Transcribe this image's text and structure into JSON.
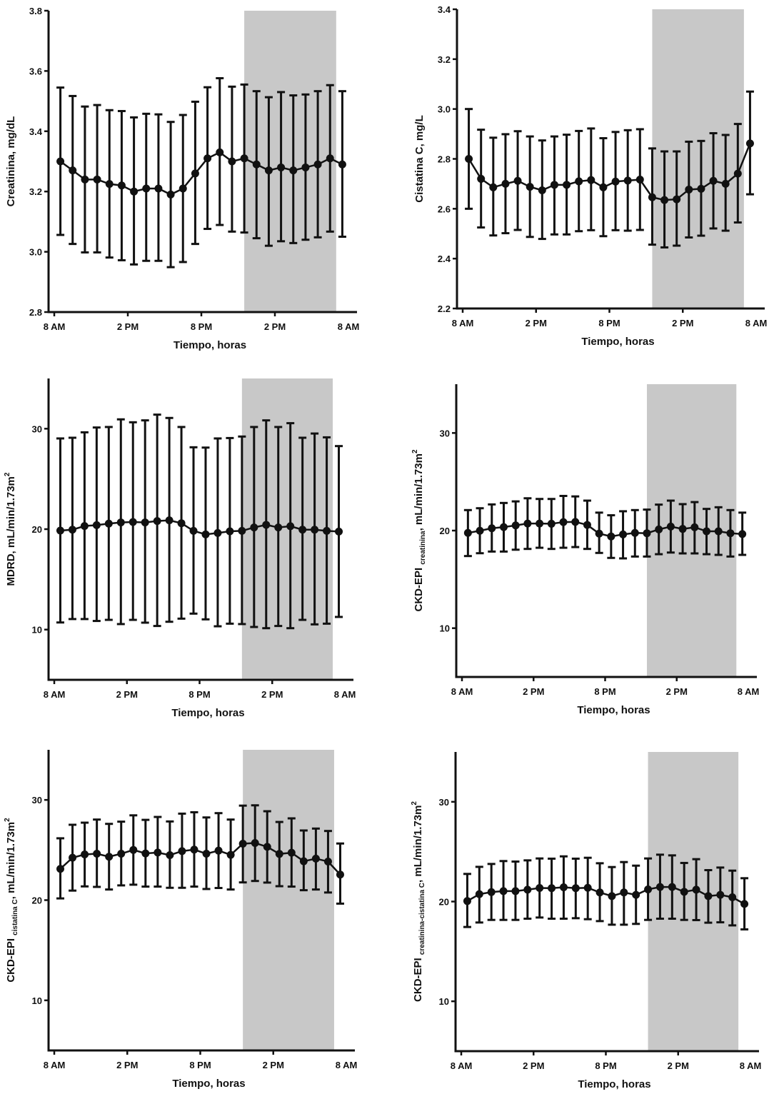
{
  "colors": {
    "line": "#111111",
    "shade": "#c8c8c8",
    "background": "#ffffff"
  },
  "x_axis": {
    "label": "Tiempo, horas",
    "tick_labels": [
      "8 AM",
      "2 PM",
      "8 PM",
      "2 PM",
      "8 AM"
    ],
    "tick_hours_from_start": [
      0,
      6,
      12,
      18,
      24
    ],
    "point_hours_from_start": [
      0.5,
      1.5,
      2.5,
      3.5,
      4.5,
      5.5,
      6.5,
      7.5,
      8.5,
      9.5,
      10.5,
      11.5,
      12.5,
      13.5,
      14.5,
      15.5,
      16.5,
      17.5,
      18.5,
      19.5,
      20.5,
      21.5,
      22.5,
      23.5
    ],
    "shaded_period_hours_from_start": [
      15.5,
      23.0
    ]
  },
  "chart_data": [
    {
      "id": "creatinina",
      "type": "line",
      "title": "",
      "ylabel": "Creatinina, mg/dL",
      "ylabel_main": "Creatinina, mg/dL",
      "ylabel_sub": "",
      "ylabel_tail": "",
      "xlabel": "Tiempo, horas",
      "ylim": [
        2.8,
        3.8
      ],
      "yticks": [
        2.8,
        3.0,
        3.2,
        3.4,
        3.6,
        3.8
      ],
      "ytick_labels": [
        "2.8",
        "3.0",
        "3.2",
        "3.4",
        "3.6",
        "3.8"
      ],
      "grid": false,
      "error_bars": true,
      "series": [
        {
          "name": "Creatinina",
          "mean": [
            3.3,
            3.27,
            3.24,
            3.24,
            3.225,
            3.22,
            3.2,
            3.21,
            3.21,
            3.19,
            3.21,
            3.26,
            3.31,
            3.33,
            3.3,
            3.31,
            3.29,
            3.27,
            3.28,
            3.27,
            3.28,
            3.29,
            3.31,
            3.29
          ],
          "upper": [
            3.545,
            3.517,
            3.482,
            3.487,
            3.47,
            3.467,
            3.446,
            3.458,
            3.456,
            3.431,
            3.454,
            3.498,
            3.546,
            3.576,
            3.548,
            3.555,
            3.533,
            3.513,
            3.53,
            3.519,
            3.522,
            3.533,
            3.553,
            3.533
          ],
          "lower": [
            3.056,
            3.026,
            2.998,
            2.998,
            2.981,
            2.972,
            2.958,
            2.97,
            2.97,
            2.949,
            2.966,
            3.026,
            3.076,
            3.089,
            3.067,
            3.064,
            3.045,
            3.02,
            3.035,
            3.029,
            3.04,
            3.048,
            3.067,
            3.05
          ]
        }
      ]
    },
    {
      "id": "cistatina",
      "type": "line",
      "title": "",
      "ylabel": "Cistatina C, mg/L",
      "ylabel_main": "Cistatina C, mg/L",
      "ylabel_sub": "",
      "ylabel_tail": "",
      "xlabel": "Tiempo, horas",
      "ylim": [
        2.2,
        3.4
      ],
      "yticks": [
        2.2,
        2.4,
        2.6,
        2.8,
        3.0,
        3.2,
        3.4
      ],
      "ytick_labels": [
        "2.2",
        "2.4",
        "2.6",
        "2.8",
        "3.0",
        "3.2",
        "3.4"
      ],
      "grid": false,
      "error_bars": true,
      "series": [
        {
          "name": "Cistatina C",
          "mean": [
            2.8,
            2.72,
            2.686,
            2.7,
            2.712,
            2.688,
            2.674,
            2.696,
            2.696,
            2.71,
            2.715,
            2.686,
            2.709,
            2.713,
            2.717,
            2.646,
            2.635,
            2.638,
            2.677,
            2.68,
            2.712,
            2.7,
            2.741,
            2.862
          ],
          "upper": [
            3.0,
            2.917,
            2.885,
            2.899,
            2.911,
            2.89,
            2.874,
            2.89,
            2.897,
            2.912,
            2.922,
            2.883,
            2.908,
            2.915,
            2.919,
            2.842,
            2.83,
            2.83,
            2.869,
            2.872,
            2.903,
            2.896,
            2.94,
            3.07
          ],
          "lower": [
            2.6,
            2.525,
            2.493,
            2.502,
            2.515,
            2.487,
            2.479,
            2.497,
            2.497,
            2.51,
            2.514,
            2.49,
            2.514,
            2.512,
            2.515,
            2.456,
            2.445,
            2.452,
            2.485,
            2.492,
            2.521,
            2.512,
            2.545,
            2.658
          ]
        }
      ]
    },
    {
      "id": "mdrd",
      "type": "line",
      "title": "",
      "ylabel": "MDRD, mL/min/1.73m2",
      "ylabel_main": "MDRD, mL/min/1.73m",
      "ylabel_sub": "",
      "ylabel_tail": "",
      "ylabel_sup": "2",
      "xlabel": "Tiempo, horas",
      "ylim": [
        5,
        35
      ],
      "yticks": [
        10,
        20,
        30
      ],
      "ytick_labels": [
        "10",
        "20",
        "30"
      ],
      "grid": false,
      "error_bars": true,
      "series": [
        {
          "name": "MDRD",
          "mean": [
            19.86,
            19.95,
            20.31,
            20.4,
            20.55,
            20.67,
            20.71,
            20.67,
            20.81,
            20.88,
            20.59,
            19.83,
            19.48,
            19.62,
            19.79,
            19.83,
            20.17,
            20.43,
            20.17,
            20.29,
            19.95,
            19.95,
            19.83,
            19.76
          ],
          "upper": [
            29.03,
            29.1,
            29.64,
            30.12,
            30.17,
            30.93,
            30.64,
            30.83,
            31.4,
            31.07,
            30.17,
            28.15,
            28.12,
            29.03,
            29.07,
            29.22,
            30.17,
            30.83,
            30.17,
            30.55,
            29.1,
            29.52,
            29.14,
            28.27
          ],
          "lower": [
            10.71,
            11.05,
            11.05,
            10.86,
            10.97,
            10.55,
            10.97,
            10.69,
            10.36,
            10.78,
            11.09,
            11.59,
            11.02,
            10.33,
            10.59,
            10.55,
            10.26,
            10.14,
            10.36,
            10.14,
            10.97,
            10.52,
            10.59,
            11.26
          ]
        }
      ]
    },
    {
      "id": "ckd-epi-creatinina",
      "type": "line",
      "title": "",
      "ylabel": "CKD-EPI creatinina, mL/min/1.73m2",
      "ylabel_main": "CKD-EPI ",
      "ylabel_sub": "creatinina",
      "ylabel_tail": ", mL/min/1.73m",
      "ylabel_sup": "2",
      "xlabel": "Tiempo, horas",
      "ylim": [
        5,
        35
      ],
      "yticks": [
        10,
        20,
        30
      ],
      "ytick_labels": [
        "10",
        "20",
        "30"
      ],
      "grid": false,
      "error_bars": true,
      "series": [
        {
          "name": "CKD-EPI creatinina",
          "mean": [
            19.76,
            19.98,
            20.24,
            20.36,
            20.53,
            20.72,
            20.72,
            20.7,
            20.87,
            20.89,
            20.58,
            19.69,
            19.4,
            19.61,
            19.76,
            19.73,
            20.12,
            20.41,
            20.17,
            20.34,
            19.93,
            19.93,
            19.73,
            19.64
          ],
          "upper": [
            22.1,
            22.29,
            22.68,
            22.83,
            22.99,
            23.31,
            23.24,
            23.24,
            23.55,
            23.5,
            23.07,
            21.84,
            21.57,
            21.98,
            22.1,
            22.15,
            22.66,
            23.07,
            22.71,
            22.92,
            22.22,
            22.39,
            22.1,
            21.84
          ],
          "lower": [
            17.39,
            17.68,
            17.85,
            17.85,
            18.04,
            18.12,
            18.24,
            18.12,
            18.24,
            18.31,
            18.12,
            17.71,
            17.2,
            17.15,
            17.34,
            17.34,
            17.58,
            17.75,
            17.66,
            17.66,
            17.58,
            17.51,
            17.34,
            17.51
          ]
        }
      ]
    },
    {
      "id": "ckd-epi-cistatina",
      "type": "line",
      "title": "",
      "ylabel": "CKD-EPI cistatina C, mL/min/1.73m2",
      "ylabel_main": "CKD-EPI ",
      "ylabel_sub": "cistatina C",
      "ylabel_tail": ", mL/min/1.73m",
      "ylabel_sup": "2",
      "xlabel": "Tiempo, horas",
      "ylim": [
        5,
        35
      ],
      "yticks": [
        10,
        20,
        30
      ],
      "ytick_labels": [
        "10",
        "20",
        "30"
      ],
      "grid": false,
      "error_bars": true,
      "series": [
        {
          "name": "CKD-EPI cistatina C",
          "mean": [
            23.12,
            24.23,
            24.56,
            24.63,
            24.33,
            24.63,
            25.01,
            24.66,
            24.75,
            24.49,
            24.89,
            25.04,
            24.63,
            24.94,
            24.52,
            25.63,
            25.7,
            25.32,
            24.61,
            24.73,
            23.88,
            24.14,
            23.85,
            22.55
          ],
          "upper": [
            26.17,
            27.52,
            27.73,
            28.04,
            27.61,
            27.83,
            28.46,
            28.01,
            28.3,
            27.85,
            28.63,
            28.77,
            28.25,
            28.68,
            28.04,
            29.43,
            29.46,
            28.87,
            27.8,
            28.16,
            26.95,
            27.14,
            26.9,
            25.65
          ],
          "lower": [
            20.17,
            20.95,
            21.37,
            21.32,
            21.06,
            21.47,
            21.54,
            21.35,
            21.35,
            21.23,
            21.23,
            21.35,
            21.11,
            21.21,
            21.06,
            21.77,
            21.91,
            21.75,
            21.39,
            21.35,
            20.99,
            21.06,
            20.76,
            19.65
          ]
        }
      ]
    },
    {
      "id": "ckd-epi-creatinina-cistatina",
      "type": "line",
      "title": "",
      "ylabel": "CKD-EPI creatinina-cistatina C, mL/min/1.73m2",
      "ylabel_main": "CKD-EPI ",
      "ylabel_sub": "creatinina-cistatina C",
      "ylabel_tail": ", mL/min/1.73m",
      "ylabel_sup": "2",
      "xlabel": "Tiempo, horas",
      "ylim": [
        5,
        35
      ],
      "yticks": [
        10,
        20,
        30
      ],
      "ytick_labels": [
        "10",
        "20",
        "30"
      ],
      "grid": false,
      "error_bars": true,
      "series": [
        {
          "name": "CKD-EPI creatinina-cistatina C",
          "mean": [
            20.05,
            20.74,
            20.95,
            21.05,
            21.05,
            21.19,
            21.36,
            21.34,
            21.43,
            21.34,
            21.38,
            20.91,
            20.55,
            20.91,
            20.67,
            21.22,
            21.46,
            21.46,
            20.98,
            21.19,
            20.55,
            20.67,
            20.43,
            19.76
          ],
          "upper": [
            22.77,
            23.48,
            23.77,
            24.06,
            24.01,
            24.13,
            24.32,
            24.3,
            24.53,
            24.3,
            24.39,
            23.84,
            23.46,
            23.96,
            23.6,
            24.32,
            24.7,
            24.63,
            23.87,
            24.25,
            23.15,
            23.41,
            23.1,
            22.34
          ],
          "lower": [
            17.45,
            17.9,
            18.16,
            18.16,
            18.16,
            18.28,
            18.4,
            18.28,
            18.28,
            18.33,
            18.23,
            18.04,
            17.68,
            17.68,
            17.76,
            18.16,
            18.28,
            18.28,
            18.16,
            18.14,
            17.88,
            17.92,
            17.61,
            17.21
          ]
        }
      ]
    }
  ]
}
